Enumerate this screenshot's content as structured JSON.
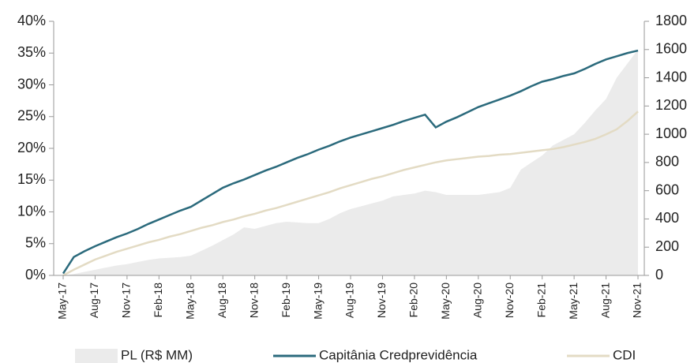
{
  "chart_data": {
    "type": "line",
    "categories": [
      "May-17",
      null,
      null,
      "Aug-17",
      null,
      null,
      "Nov-17",
      null,
      null,
      "Feb-18",
      null,
      null,
      "May-18",
      null,
      null,
      "Aug-18",
      null,
      null,
      "Nov-18",
      null,
      null,
      "Feb-19",
      null,
      null,
      "May-19",
      null,
      null,
      "Aug-19",
      null,
      null,
      "Nov-19",
      null,
      null,
      "Feb-20",
      null,
      null,
      "May-20",
      null,
      null,
      "Aug-20",
      null,
      null,
      "Nov-20",
      null,
      null,
      "Feb-21",
      null,
      null,
      "May-21",
      null,
      null,
      "Aug-21",
      null,
      null,
      "Nov-21"
    ],
    "series": [
      {
        "name": "PL (R$ MM)",
        "color": "#ebebeb",
        "axis": "y2",
        "style": "area",
        "values": [
          0,
          10,
          25,
          40,
          55,
          70,
          80,
          95,
          110,
          120,
          125,
          130,
          140,
          175,
          210,
          250,
          290,
          340,
          330,
          350,
          370,
          380,
          375,
          370,
          370,
          400,
          440,
          470,
          490,
          510,
          530,
          560,
          570,
          580,
          600,
          590,
          570,
          570,
          570,
          570,
          580,
          590,
          620,
          750,
          800,
          850,
          920,
          960,
          1000,
          1080,
          1170,
          1250,
          1400,
          1500,
          1600
        ]
      },
      {
        "name": "Capitânia Credprevidência",
        "color": "#2b6a7c",
        "values": [
          0.3,
          2.9,
          3.8,
          4.6,
          5.3,
          6.0,
          6.6,
          7.3,
          8.1,
          8.8,
          9.5,
          10.2,
          10.8,
          11.8,
          12.8,
          13.8,
          14.5,
          15.1,
          15.8,
          16.5,
          17.1,
          17.8,
          18.5,
          19.1,
          19.8,
          20.4,
          21.1,
          21.7,
          22.2,
          22.7,
          23.2,
          23.7,
          24.3,
          24.8,
          25.3,
          23.3,
          24.2,
          24.9,
          25.7,
          26.5,
          27.1,
          27.7,
          28.3,
          29.0,
          29.8,
          30.5,
          30.9,
          31.4,
          31.8,
          32.5,
          33.3,
          34.0,
          34.5,
          35.0,
          35.4
        ]
      },
      {
        "name": "CDI",
        "color": "#e3dbc4",
        "values": [
          0,
          0.9,
          1.7,
          2.5,
          3.1,
          3.7,
          4.2,
          4.7,
          5.2,
          5.6,
          6.1,
          6.5,
          7.0,
          7.5,
          7.9,
          8.4,
          8.8,
          9.3,
          9.7,
          10.2,
          10.6,
          11.1,
          11.6,
          12.1,
          12.6,
          13.1,
          13.7,
          14.2,
          14.7,
          15.2,
          15.6,
          16.1,
          16.6,
          17.0,
          17.4,
          17.8,
          18.1,
          18.3,
          18.5,
          18.7,
          18.8,
          19.0,
          19.1,
          19.3,
          19.5,
          19.7,
          19.9,
          20.2,
          20.6,
          21.0,
          21.5,
          22.2,
          23.0,
          24.3,
          25.8
        ]
      }
    ],
    "ylim": [
      0,
      40
    ],
    "yticks": [
      {
        "value": 0,
        "label": "0%"
      },
      {
        "value": 5,
        "label": "5%"
      },
      {
        "value": 10,
        "label": "10%"
      },
      {
        "value": 15,
        "label": "15%"
      },
      {
        "value": 20,
        "label": "20%"
      },
      {
        "value": 25,
        "label": "25%"
      },
      {
        "value": 30,
        "label": "30%"
      },
      {
        "value": 35,
        "label": "35%"
      },
      {
        "value": 40,
        "label": "40%"
      }
    ],
    "y2lim": [
      0,
      1800
    ],
    "y2ticks": [
      0,
      200,
      400,
      600,
      800,
      1000,
      1200,
      1400,
      1600,
      1800
    ],
    "legend": "bottom"
  }
}
